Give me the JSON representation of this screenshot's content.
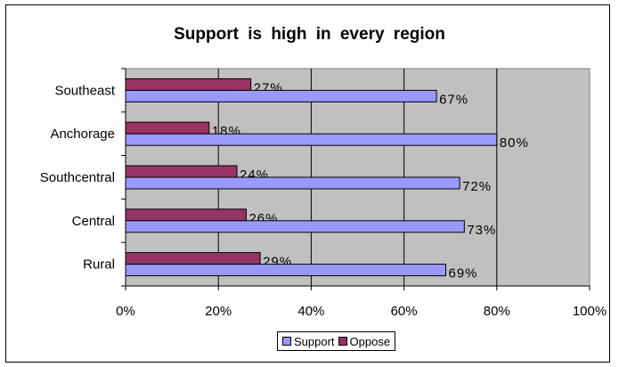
{
  "chart_data": {
    "type": "bar",
    "orientation": "horizontal",
    "title": "Support is high in every region",
    "categories": [
      "Southeast",
      "Anchorage",
      "Southcentral",
      "Central",
      "Rural"
    ],
    "series": [
      {
        "name": "Oppose",
        "values": [
          27,
          18,
          24,
          26,
          29
        ],
        "labels": [
          "27%",
          "18%",
          "24%",
          "26%",
          "29%"
        ],
        "color": "#993366"
      },
      {
        "name": "Support",
        "values": [
          67,
          80,
          72,
          73,
          69
        ],
        "labels": [
          "67%",
          "80%",
          "72%",
          "73%",
          "69%"
        ],
        "color": "#9999ff"
      }
    ],
    "xlim": [
      0,
      100
    ],
    "ticks": [
      {
        "value": 0,
        "label": "0%"
      },
      {
        "value": 20,
        "label": "20%"
      },
      {
        "value": 40,
        "label": "40%"
      },
      {
        "value": 60,
        "label": "60%"
      },
      {
        "value": 80,
        "label": "80%"
      },
      {
        "value": 100,
        "label": "100%"
      }
    ],
    "grid": true,
    "plot_background": "#c0c0c0",
    "legend": {
      "position": "bottom",
      "entries": [
        {
          "name": "Support",
          "color": "#9999ff"
        },
        {
          "name": "Oppose",
          "color": "#993366"
        }
      ]
    }
  }
}
